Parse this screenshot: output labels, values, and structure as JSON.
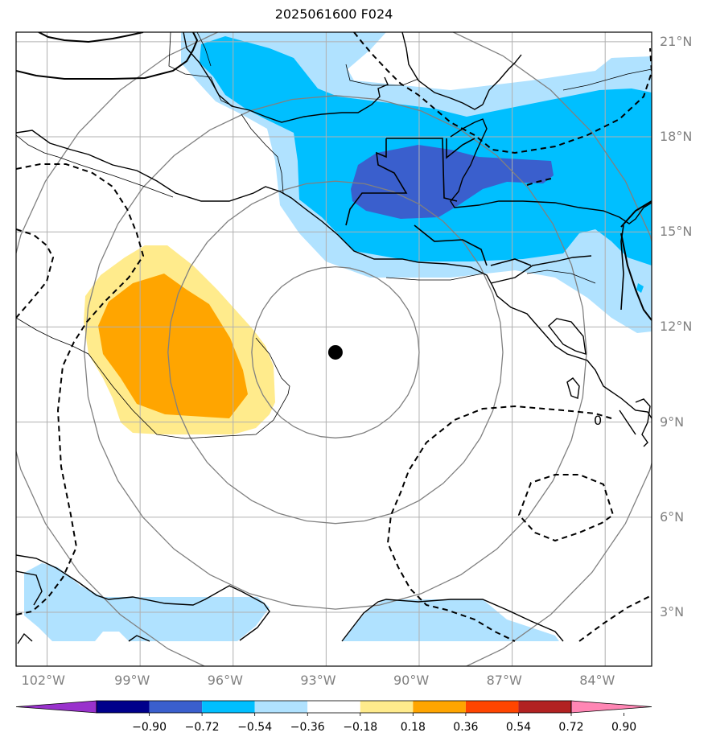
{
  "title": "2025061600 F024",
  "map": {
    "extent": {
      "lon_min": -103.0,
      "lon_max": -82.5,
      "lat_min": 1.3,
      "lat_max": 21.3
    },
    "lat_lines": [
      3,
      6,
      9,
      12,
      15,
      18,
      21
    ],
    "lat_labels": [
      "3°N",
      "6°N",
      "9°N",
      "12°N",
      "15°N",
      "18°N",
      "21°N"
    ],
    "lon_lines": [
      -102,
      -99,
      -96,
      -93,
      -90,
      -87,
      -84
    ],
    "lon_labels": [
      "102°W",
      "99°W",
      "96°W",
      "93°W",
      "90°W",
      "87°W",
      "84°W"
    ],
    "center_marker": {
      "lon": -92.7,
      "lat": 11.2
    },
    "range_ring_radii_deg": [
      2.7,
      5.4,
      8.1,
      10.8
    ],
    "contour_label": "0"
  },
  "colorbar": {
    "levels": [
      -0.9,
      -0.72,
      -0.54,
      -0.36,
      -0.18,
      0.18,
      0.36,
      0.54,
      0.72,
      0.9
    ],
    "tick_labels": [
      "−0.90",
      "−0.72",
      "−0.54",
      "−0.36",
      "−0.18",
      "0.18",
      "0.36",
      "0.54",
      "0.72",
      "0.90"
    ],
    "colors": [
      "#9932cc",
      "#00008b",
      "#3a5fcd",
      "#00bfff",
      "#b0e2ff",
      "#ffffff",
      "#ffeb8c",
      "#ffa500",
      "#ff4500",
      "#b22222",
      "#ff86b4"
    ]
  }
}
